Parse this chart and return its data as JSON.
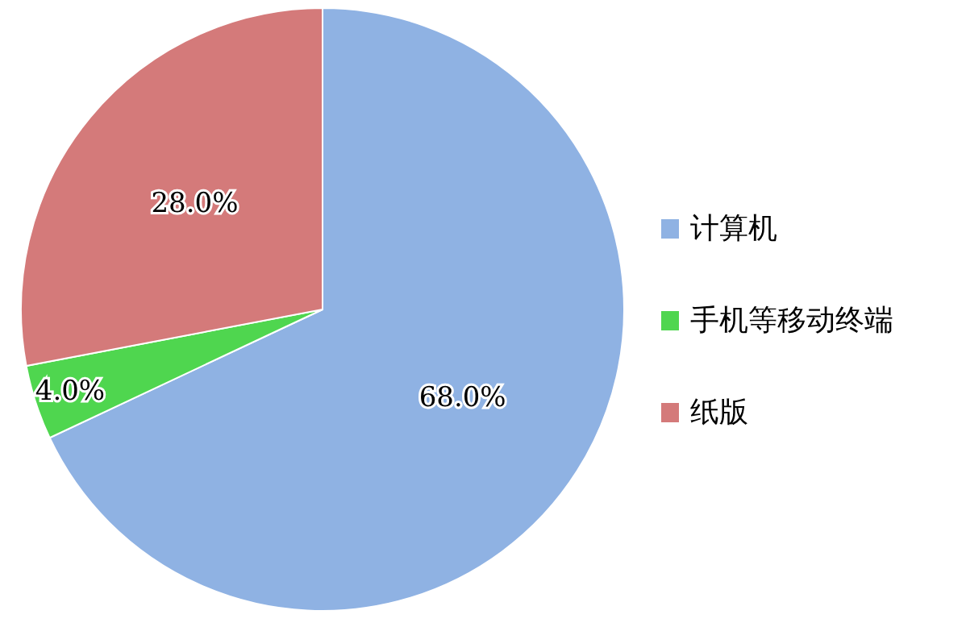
{
  "chart_data": {
    "type": "pie",
    "categories": [
      "计算机",
      "手机等移动终端",
      "纸版"
    ],
    "values": [
      68.0,
      4.0,
      28.0
    ],
    "colors": [
      "#8fb2e3",
      "#4fd64f",
      "#d47a7a"
    ],
    "value_labels": [
      "68.0%",
      "4.0%",
      "28.0%"
    ],
    "legend": "right"
  }
}
